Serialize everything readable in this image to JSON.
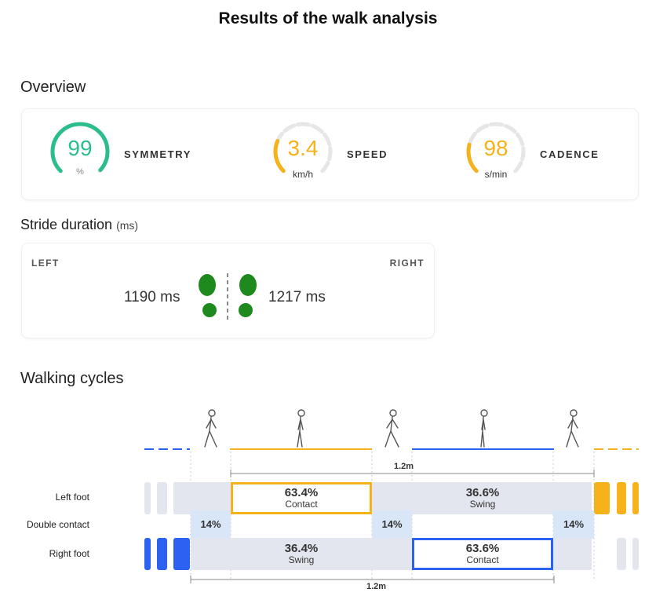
{
  "page": {
    "title": "Results of the walk analysis"
  },
  "overview": {
    "heading": "Overview",
    "metrics": [
      {
        "value": "99",
        "unit": "%",
        "label": "SYMMETRY",
        "color": "#2bbd8e",
        "fraction": 0.99
      },
      {
        "value": "3.4",
        "unit": "km/h",
        "label": "SPEED",
        "color": "#f6b21b",
        "fraction": 0.25
      },
      {
        "value": "98",
        "unit": "s/min",
        "label": "CADENCE",
        "color": "#f6b21b",
        "fraction": 0.22
      }
    ]
  },
  "stride": {
    "heading": "Stride duration",
    "unit": "(ms)",
    "left_label": "LEFT",
    "right_label": "RIGHT",
    "left_value": "1190 ms",
    "right_value": "1217 ms",
    "icon": "footprints-icon",
    "icon_color": "#1e8a1e"
  },
  "cycles": {
    "heading": "Walking cycles",
    "rows": {
      "left": "Left foot",
      "double": "Double contact",
      "right": "Right foot"
    },
    "left_contact": {
      "pct": "63.4%",
      "name": "Contact"
    },
    "left_swing": {
      "pct": "36.6%",
      "name": "Swing"
    },
    "right_swing": {
      "pct": "36.4%",
      "name": "Swing"
    },
    "right_contact": {
      "pct": "63.6%",
      "name": "Contact"
    },
    "double_contact": [
      "14%",
      "14%",
      "14%"
    ],
    "top_distance": "1.2m",
    "bottom_distance": "1.2m",
    "colors": {
      "left": "#f6b21b",
      "right": "#2b62f2",
      "track": "#e3e6ef",
      "double": "#d9e6f8"
    }
  }
}
